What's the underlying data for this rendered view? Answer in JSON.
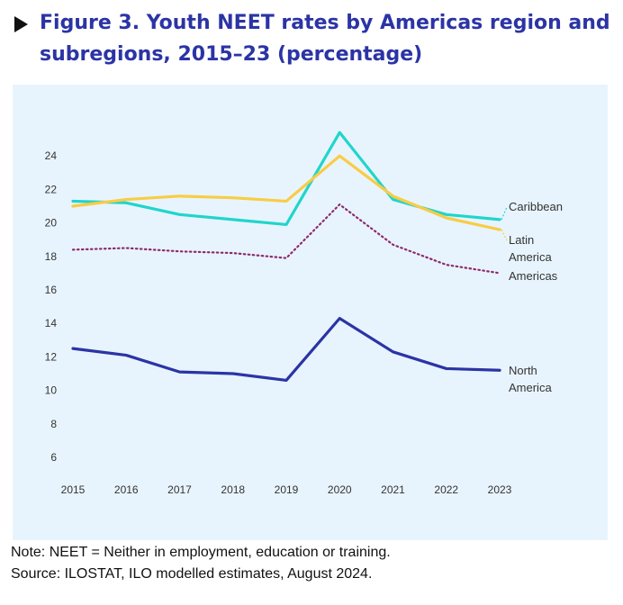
{
  "title": "Figure 3. Youth NEET rates by Americas region and subregions, 2015–23 (percentage)",
  "notes": {
    "note": "Note: NEET = Neither in employment, education or training.",
    "source": "Source: ILOSTAT, ILO modelled estimates, August 2024."
  },
  "chart_data": {
    "type": "line",
    "title": "Figure 3. Youth NEET rates by Americas region and subregions, 2015–23 (percentage)",
    "xlabel": "",
    "ylabel": "",
    "x": [
      "2015",
      "2016",
      "2017",
      "2018",
      "2019",
      "2020",
      "2021",
      "2022",
      "2023"
    ],
    "ylim": [
      5,
      26
    ],
    "yticks": [
      6,
      8,
      10,
      12,
      14,
      16,
      18,
      20,
      22,
      24
    ],
    "grid": false,
    "series": [
      {
        "name": "Caribbean",
        "label_lines": [
          "Caribbean"
        ],
        "color": "#20d5cc",
        "style": "solid",
        "values": [
          21.3,
          21.2,
          20.5,
          20.2,
          19.9,
          25.4,
          21.4,
          20.5,
          20.2
        ]
      },
      {
        "name": "Latin America",
        "label_lines": [
          "Latin",
          "America"
        ],
        "color": "#f8cc45",
        "style": "solid",
        "values": [
          21.0,
          21.4,
          21.6,
          21.5,
          21.3,
          24.0,
          21.6,
          20.3,
          19.6
        ]
      },
      {
        "name": "Americas",
        "label_lines": [
          "Americas"
        ],
        "color": "#8c2a6d",
        "style": "dotted",
        "values": [
          18.4,
          18.5,
          18.3,
          18.2,
          17.9,
          21.1,
          18.7,
          17.5,
          17.0
        ]
      },
      {
        "name": "North America",
        "label_lines": [
          "North",
          "America"
        ],
        "color": "#2b34a5",
        "style": "solid",
        "values": [
          12.5,
          12.1,
          11.1,
          11.0,
          10.6,
          14.3,
          12.3,
          11.3,
          11.2
        ]
      }
    ]
  }
}
